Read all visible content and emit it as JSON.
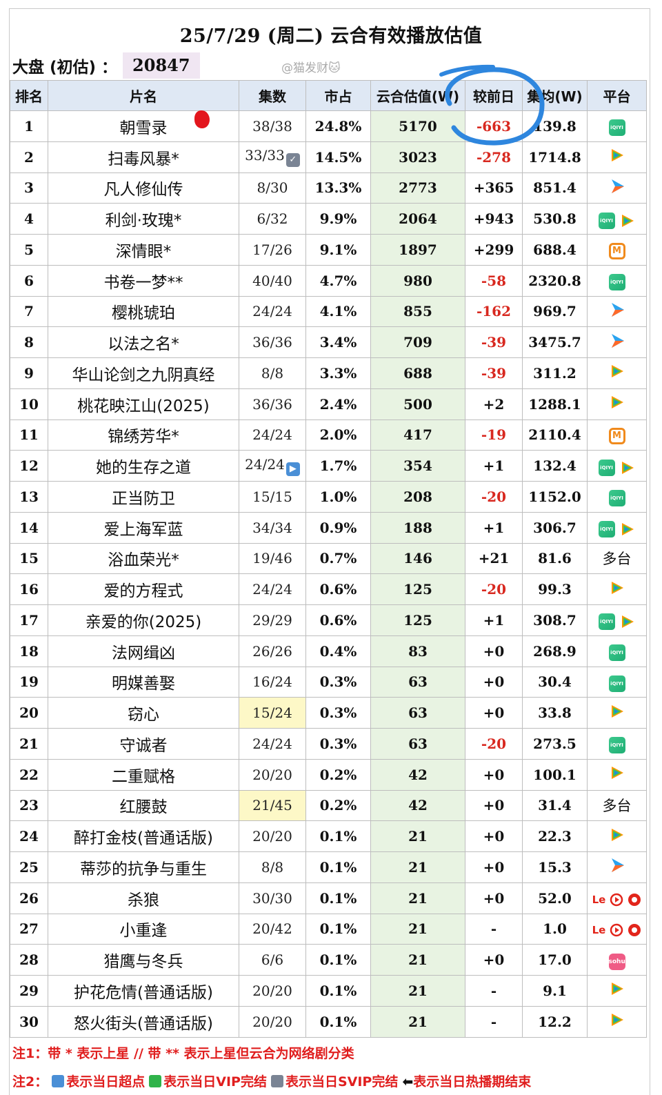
{
  "title": "25/7/29 (周二) 云合有效播放估值",
  "dapan": {
    "label": "大盘 (初估) ：",
    "value": "20847"
  },
  "watermark": "@猫发财🐱",
  "headers": [
    "排名",
    "片名",
    "集数",
    "市占",
    "云合估值(W)",
    "较前日",
    "集均(W)",
    "平台"
  ],
  "rows": [
    {
      "rank": "1",
      "name": "朝雪录",
      "eps": "38/38",
      "share": "24.8%",
      "value": "5170",
      "diff": "-663",
      "avg": "139.8",
      "platforms": [
        "iqiyi"
      ]
    },
    {
      "rank": "2",
      "name": "扫毒风暴*",
      "eps": "33/33",
      "eps_icon": "check",
      "share": "14.5%",
      "value": "3023",
      "diff": "-278",
      "avg": "1714.8",
      "platforms": [
        "tencent"
      ]
    },
    {
      "rank": "3",
      "name": "凡人修仙传",
      "eps": "8/30",
      "share": "13.3%",
      "value": "2773",
      "diff": "+365",
      "avg": "851.4",
      "platforms": [
        "youku"
      ]
    },
    {
      "rank": "4",
      "name": "利剑·玫瑰*",
      "eps": "6/32",
      "share": "9.9%",
      "value": "2064",
      "diff": "+943",
      "avg": "530.8",
      "platforms": [
        "iqiyi",
        "tencent"
      ]
    },
    {
      "rank": "5",
      "name": "深情眼*",
      "eps": "17/26",
      "share": "9.1%",
      "value": "1897",
      "diff": "+299",
      "avg": "688.4",
      "platforms": [
        "mango"
      ]
    },
    {
      "rank": "6",
      "name": "书卷一梦**",
      "eps": "40/40",
      "share": "4.7%",
      "value": "980",
      "diff": "-58",
      "avg": "2320.8",
      "platforms": [
        "iqiyi"
      ]
    },
    {
      "rank": "7",
      "name": "樱桃琥珀",
      "eps": "24/24",
      "share": "4.1%",
      "value": "855",
      "diff": "-162",
      "avg": "969.7",
      "platforms": [
        "youku"
      ]
    },
    {
      "rank": "8",
      "name": "以法之名*",
      "eps": "36/36",
      "share": "3.4%",
      "value": "709",
      "diff": "-39",
      "avg": "3475.7",
      "platforms": [
        "youku"
      ]
    },
    {
      "rank": "9",
      "name": "华山论剑之九阴真经",
      "eps": "8/8",
      "share": "3.3%",
      "value": "688",
      "diff": "-39",
      "avg": "311.2",
      "platforms": [
        "tencent"
      ]
    },
    {
      "rank": "10",
      "name": "桃花映江山(2025)",
      "eps": "36/36",
      "share": "2.4%",
      "value": "500",
      "diff": "+2",
      "avg": "1288.1",
      "platforms": [
        "tencent"
      ]
    },
    {
      "rank": "11",
      "name": "锦绣芳华*",
      "eps": "24/24",
      "share": "2.0%",
      "value": "417",
      "diff": "-19",
      "avg": "2110.4",
      "platforms": [
        "mango"
      ]
    },
    {
      "rank": "12",
      "name": "她的生存之道",
      "eps": "24/24",
      "eps_icon": "play",
      "share": "1.7%",
      "value": "354",
      "diff": "+1",
      "avg": "132.4",
      "platforms": [
        "iqiyi",
        "tencent"
      ]
    },
    {
      "rank": "13",
      "name": "正当防卫",
      "eps": "15/15",
      "share": "1.0%",
      "value": "208",
      "diff": "-20",
      "avg": "1152.0",
      "platforms": [
        "iqiyi"
      ]
    },
    {
      "rank": "14",
      "name": "爱上海军蓝",
      "eps": "34/34",
      "share": "0.9%",
      "value": "188",
      "diff": "+1",
      "avg": "306.7",
      "platforms": [
        "iqiyi",
        "tencent"
      ]
    },
    {
      "rank": "15",
      "name": "浴血荣光*",
      "eps": "19/46",
      "share": "0.7%",
      "value": "146",
      "diff": "+21",
      "avg": "81.6",
      "platforms": [],
      "platform_text": "多台"
    },
    {
      "rank": "16",
      "name": "爱的方程式",
      "eps": "24/24",
      "share": "0.6%",
      "value": "125",
      "diff": "-20",
      "avg": "99.3",
      "platforms": [
        "tencent"
      ]
    },
    {
      "rank": "17",
      "name": "亲爱的你(2025)",
      "eps": "29/29",
      "share": "0.6%",
      "value": "125",
      "diff": "+1",
      "avg": "308.7",
      "platforms": [
        "iqiyi",
        "tencent"
      ]
    },
    {
      "rank": "18",
      "name": "法网缉凶",
      "eps": "26/26",
      "share": "0.4%",
      "value": "83",
      "diff": "+0",
      "avg": "268.9",
      "platforms": [
        "iqiyi"
      ]
    },
    {
      "rank": "19",
      "name": "明媒善娶",
      "eps": "16/24",
      "share": "0.3%",
      "value": "63",
      "diff": "+0",
      "avg": "30.4",
      "platforms": [
        "iqiyi"
      ]
    },
    {
      "rank": "20",
      "name": "窃心",
      "eps": "15/24",
      "eps_highlight": true,
      "share": "0.3%",
      "value": "63",
      "diff": "+0",
      "avg": "33.8",
      "platforms": [
        "tencent"
      ]
    },
    {
      "rank": "21",
      "name": "守诚者",
      "eps": "24/24",
      "share": "0.3%",
      "value": "63",
      "diff": "-20",
      "avg": "273.5",
      "platforms": [
        "iqiyi"
      ]
    },
    {
      "rank": "22",
      "name": "二重赋格",
      "eps": "20/20",
      "share": "0.2%",
      "value": "42",
      "diff": "+0",
      "avg": "100.1",
      "platforms": [
        "tencent"
      ]
    },
    {
      "rank": "23",
      "name": "红腰鼓",
      "eps": "21/45",
      "eps_highlight": true,
      "share": "0.2%",
      "value": "42",
      "diff": "+0",
      "avg": "31.4",
      "platforms": [],
      "platform_text": "多台"
    },
    {
      "rank": "24",
      "name": "醉打金枝(普通话版)",
      "eps": "20/20",
      "share": "0.1%",
      "value": "21",
      "diff": "+0",
      "avg": "22.3",
      "platforms": [
        "tencent"
      ]
    },
    {
      "rank": "25",
      "name": "蒂莎的抗争与重生",
      "eps": "8/8",
      "share": "0.1%",
      "value": "21",
      "diff": "+0",
      "avg": "15.3",
      "platforms": [
        "youku"
      ]
    },
    {
      "rank": "26",
      "name": "杀狼",
      "eps": "30/30",
      "share": "0.1%",
      "value": "21",
      "diff": "+0",
      "avg": "52.0",
      "platforms": [
        "le"
      ]
    },
    {
      "rank": "27",
      "name": "小重逢",
      "eps": "20/42",
      "share": "0.1%",
      "value": "21",
      "diff": "-",
      "avg": "1.0",
      "platforms": [
        "le"
      ]
    },
    {
      "rank": "28",
      "name": "猎鹰与冬兵",
      "eps": "6/6",
      "share": "0.1%",
      "value": "21",
      "diff": "+0",
      "avg": "17.0",
      "platforms": [
        "sohu"
      ]
    },
    {
      "rank": "29",
      "name": "护花危情(普通话版)",
      "eps": "20/20",
      "share": "0.1%",
      "value": "21",
      "diff": "-",
      "avg": "9.1",
      "platforms": [
        "tencent"
      ]
    },
    {
      "rank": "30",
      "name": "怒火街头(普通话版)",
      "eps": "20/20",
      "share": "0.1%",
      "value": "21",
      "diff": "-",
      "avg": "12.2",
      "platforms": [
        "tencent"
      ]
    }
  ],
  "platform_labels": {
    "iqiyi": "iQIYI",
    "le": "Le",
    "sohu": "sohu",
    "mango": "M"
  },
  "colors": {
    "negative": "#d8281f",
    "header_bg": "#dfe8f4",
    "value_bg": "#e8f3e2",
    "annotation_circle": "#2e86de",
    "iqiyi": "#1fae74",
    "tencent_blue": "#1e88e5",
    "tencent_green": "#3cc457",
    "tencent_orange": "#ff9800",
    "youku": "#2aa3ef",
    "mango": "#f08a1c"
  },
  "notes": {
    "note1": "注1：带 * 表示上星 // 带 ** 表示上星但云合为网络剧分类",
    "note2": [
      {
        "icon": "play",
        "text": "表示当日超点"
      },
      {
        "icon": "check-green",
        "text": "表示当日VIP完结"
      },
      {
        "icon": "check-gray",
        "text": "表示当日SVIP完结"
      },
      {
        "icon": "arrow",
        "text": "表示当日热播期结束"
      }
    ],
    "note2_prefix": "注2："
  }
}
